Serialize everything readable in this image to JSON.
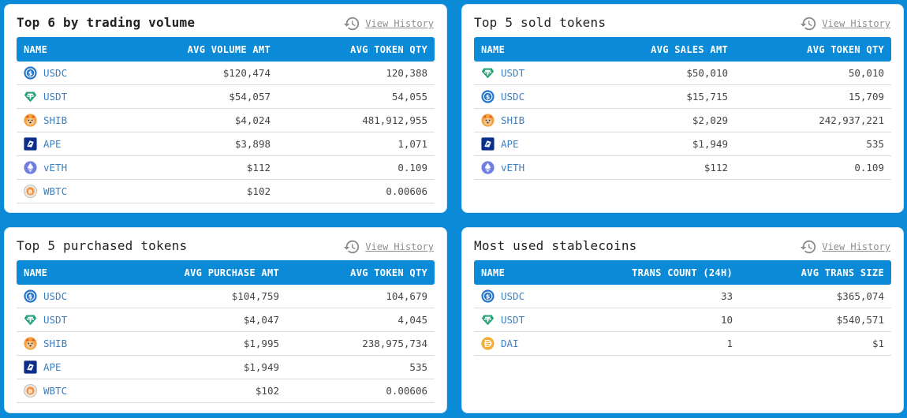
{
  "view_history_label": "View History",
  "cards": [
    {
      "title": "Top 6 by trading volume",
      "columns": [
        "NAME",
        "AVG VOLUME AMT",
        "AVG TOKEN QTY"
      ],
      "rows": [
        {
          "icon": "usdc-icon",
          "symbol": "USDC",
          "amount": "$120,474",
          "qty": "120,388"
        },
        {
          "icon": "usdt-icon",
          "symbol": "USDT",
          "amount": "$54,057",
          "qty": "54,055"
        },
        {
          "icon": "shib-icon",
          "symbol": "SHIB",
          "amount": "$4,024",
          "qty": "481,912,955"
        },
        {
          "icon": "ape-icon",
          "symbol": "APE",
          "amount": "$3,898",
          "qty": "1,071"
        },
        {
          "icon": "veth-icon",
          "symbol": "vETH",
          "amount": "$112",
          "qty": "0.109"
        },
        {
          "icon": "wbtc-icon",
          "symbol": "WBTC",
          "amount": "$102",
          "qty": "0.00606"
        }
      ]
    },
    {
      "title": "Top 5 sold tokens",
      "columns": [
        "NAME",
        "AVG SALES AMT",
        "AVG TOKEN QTY"
      ],
      "rows": [
        {
          "icon": "usdt-icon",
          "symbol": "USDT",
          "amount": "$50,010",
          "qty": "50,010"
        },
        {
          "icon": "usdc-icon",
          "symbol": "USDC",
          "amount": "$15,715",
          "qty": "15,709"
        },
        {
          "icon": "shib-icon",
          "symbol": "SHIB",
          "amount": "$2,029",
          "qty": "242,937,221"
        },
        {
          "icon": "ape-icon",
          "symbol": "APE",
          "amount": "$1,949",
          "qty": "535"
        },
        {
          "icon": "veth-icon",
          "symbol": "vETH",
          "amount": "$112",
          "qty": "0.109"
        }
      ]
    },
    {
      "title": "Top 5 purchased tokens",
      "columns": [
        "NAME",
        "AVG PURCHASE AMT",
        "AVG TOKEN QTY"
      ],
      "rows": [
        {
          "icon": "usdc-icon",
          "symbol": "USDC",
          "amount": "$104,759",
          "qty": "104,679"
        },
        {
          "icon": "usdt-icon",
          "symbol": "USDT",
          "amount": "$4,047",
          "qty": "4,045"
        },
        {
          "icon": "shib-icon",
          "symbol": "SHIB",
          "amount": "$1,995",
          "qty": "238,975,734"
        },
        {
          "icon": "ape-icon",
          "symbol": "APE",
          "amount": "$1,949",
          "qty": "535"
        },
        {
          "icon": "wbtc-icon",
          "symbol": "WBTC",
          "amount": "$102",
          "qty": "0.00606"
        }
      ]
    },
    {
      "title": "Most used stablecoins",
      "columns": [
        "NAME",
        "TRANS COUNT (24H)",
        "AVG TRANS SIZE"
      ],
      "rows": [
        {
          "icon": "usdc-icon",
          "symbol": "USDC",
          "amount": "33",
          "qty": "$365,074"
        },
        {
          "icon": "usdt-icon",
          "symbol": "USDT",
          "amount": "10",
          "qty": "$540,571"
        },
        {
          "icon": "dai-icon",
          "symbol": "DAI",
          "amount": "1",
          "qty": "$1"
        }
      ]
    }
  ],
  "colors": {
    "background": "#0b8ad8",
    "header": "#0b8ad8",
    "symbol_text": "#3a7fc2",
    "history_text": "#8e8e8e"
  }
}
